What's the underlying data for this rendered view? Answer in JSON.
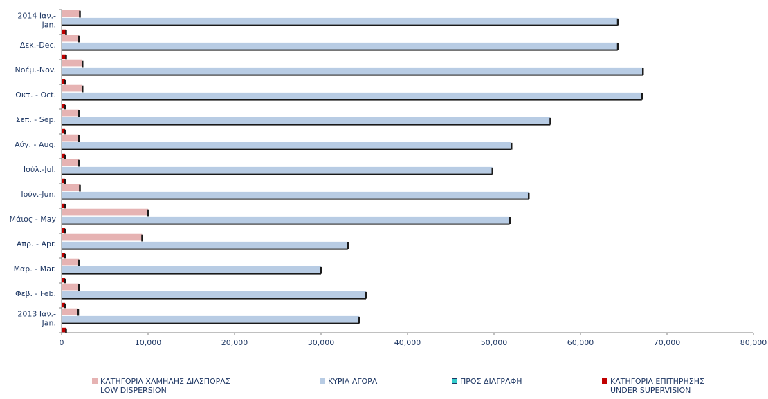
{
  "chart_data": {
    "type": "bar",
    "orientation": "horizontal",
    "categories": [
      "2014 Ιαν.-\nJan.",
      "Δεκ.-Dec.",
      "Νοέμ.-Nov.",
      "Οκτ. - Oct.",
      "Σεπ. - Sep.",
      "Αύγ. - Aug.",
      "Ιούλ.-Jul.",
      "Ιούν.-Jun.",
      "Μάιος - May",
      "Απρ. - Apr.",
      "Μαρ. - Mar.",
      "Φεβ. - Feb.",
      "2013 Ιαν.-\nJan."
    ],
    "series": [
      {
        "name": "ΚΑΤΗΓΟΡΙΑ ΧΑΜΗΛΗΣ ΔΙΑΣΠΟΡΑΣ\nLOW DISPERSION",
        "color": "#e6b3b3",
        "values": [
          2100,
          2000,
          2400,
          2400,
          2000,
          2000,
          2000,
          2100,
          10000,
          9300,
          2000,
          2000,
          1900
        ]
      },
      {
        "name": "ΚΥΡΙΑ ΑΓΟΡΑ",
        "color": "#b8cce4",
        "values": [
          64300,
          64300,
          67200,
          67100,
          56500,
          52000,
          49800,
          54000,
          51800,
          33100,
          30000,
          35200,
          34400
        ]
      },
      {
        "name": "ΠΡΟΣ ΔΙΑΓΡΑΦΗ",
        "color": "#33cccc",
        "values": [
          0,
          0,
          0,
          0,
          0,
          0,
          0,
          0,
          0,
          0,
          0,
          0,
          0
        ]
      },
      {
        "name": "ΚΑΤΗΓΟΡΙΑ ΕΠΙΤΗΡΗΣΗΣ\nUNDER SUPERVISION",
        "color": "#c00000",
        "values": [
          500,
          500,
          400,
          400,
          400,
          400,
          400,
          400,
          400,
          400,
          400,
          400,
          500
        ]
      }
    ],
    "xlim": [
      0,
      80000
    ],
    "x_ticks": [
      "0",
      "10,000",
      "20,000",
      "30,000",
      "40,000",
      "50,000",
      "60,000",
      "70,000",
      "80,000"
    ],
    "x_tick_values": [
      0,
      10000,
      20000,
      30000,
      40000,
      50000,
      60000,
      70000,
      80000
    ],
    "legend_position": "bottom",
    "grid": false,
    "title": "",
    "xlabel": "",
    "ylabel": ""
  }
}
